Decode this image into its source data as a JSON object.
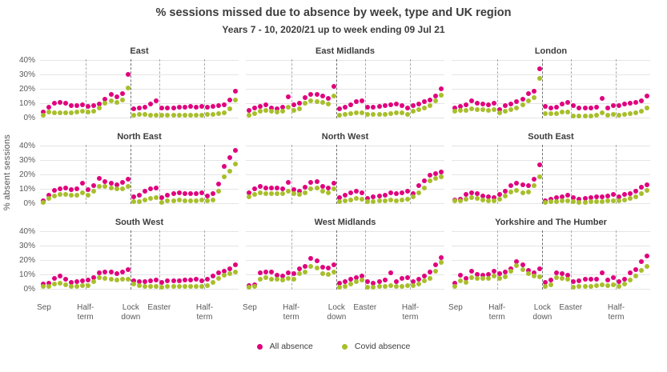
{
  "chart_data": {
    "type": "scatter",
    "title": "% sessions missed due to absence by week, type and UK region",
    "subtitle": "Years 7 - 10, 2020/21 up to week ending 09 Jul 21",
    "ylabel": "% absent sessions",
    "ylim": [
      0,
      40
    ],
    "y_ticks": [
      "0%",
      "10%",
      "20%",
      "30%",
      "40%"
    ],
    "grid": "horizontal-light-gray",
    "legend_position": "bottom-center",
    "series_names": [
      "All absence",
      "Covid absence"
    ],
    "colors": {
      "all_absence": "#e0007d",
      "covid_absence": "#a8be2b",
      "gridline": "#e4e4e4",
      "separator": "#ababab",
      "lockdown_separator": "#6f6f6f",
      "text": "#3d3d3d",
      "axis_text": "#5a5a5a"
    },
    "x_axis": {
      "period_labels": [
        "Sep",
        "Half-\nterm",
        "Lock\ndown",
        "Easter",
        "Half-\nterm"
      ],
      "weeks_per_segment": [
        8,
        8,
        5,
        8,
        6
      ],
      "total_weeks": 35,
      "separator_after_weeks": [
        8,
        16,
        21,
        29
      ],
      "lockdown_separator_week": 16
    },
    "panels": [
      {
        "region": "East",
        "all_absence": [
          4.5,
          8,
          10.5,
          11,
          10.5,
          9,
          9,
          9.5,
          8.5,
          9,
          10,
          13.5,
          16.5,
          15,
          17.5,
          30.5,
          6.5,
          7.5,
          8,
          10,
          12,
          7,
          7.5,
          7.5,
          8,
          8,
          8.5,
          8,
          8.5,
          8,
          8.5,
          9,
          9.5,
          13,
          19
        ],
        "covid_absence": [
          2.5,
          4.5,
          4,
          4,
          4,
          4,
          4.5,
          5,
          4.5,
          5,
          7.5,
          10.5,
          12.5,
          11,
          13,
          21,
          2.5,
          3,
          3,
          2.5,
          2,
          2,
          2,
          2,
          2,
          2,
          2,
          2,
          2,
          3,
          3,
          3.5,
          4,
          6.5,
          13
        ]
      },
      {
        "region": "East Midlands",
        "all_absence": [
          5.5,
          7,
          8.5,
          9.5,
          7.5,
          6.5,
          8,
          15,
          9.5,
          10.5,
          14.5,
          16.5,
          16.5,
          15.5,
          14,
          22,
          6.5,
          8,
          9.5,
          11.5,
          12.5,
          8,
          8,
          8.5,
          9,
          9.5,
          10,
          9,
          7,
          9,
          10,
          11.5,
          13,
          15.5,
          20.5
        ],
        "covid_absence": [
          2.5,
          3.5,
          5,
          5.5,
          5,
          4.5,
          5,
          8,
          5.5,
          6.5,
          10.5,
          12,
          11.5,
          11,
          10,
          15.5,
          2.5,
          3,
          3.5,
          4,
          4,
          3,
          3,
          3,
          3,
          3.5,
          4,
          4,
          3,
          5,
          6,
          7,
          9,
          12,
          16
        ]
      },
      {
        "region": "London",
        "all_absence": [
          7.5,
          8.5,
          9.5,
          12,
          10.5,
          10,
          9.5,
          10.5,
          6,
          9,
          10,
          11.5,
          13.5,
          17,
          19,
          34.5,
          8.5,
          7.5,
          8,
          10,
          11,
          9,
          7,
          7,
          7.5,
          8,
          14,
          7.5,
          9,
          9,
          10,
          10.5,
          11,
          12,
          15.5
        ],
        "covid_absence": [
          5,
          5.5,
          5.5,
          6.5,
          6,
          6,
          5.5,
          6,
          4,
          5,
          6,
          7.5,
          9.5,
          12,
          14.5,
          28,
          3.5,
          3.5,
          3.5,
          4.5,
          4.5,
          1.5,
          1.5,
          1.5,
          1.5,
          2,
          4,
          2,
          3,
          2.5,
          3,
          3.5,
          4,
          5,
          7
        ]
      },
      {
        "region": "North East",
        "all_absence": [
          2.5,
          6,
          9.5,
          10.5,
          11,
          10,
          10.5,
          14.5,
          10,
          13,
          18,
          15.5,
          14.5,
          13.5,
          15,
          17.5,
          5,
          6,
          9,
          10.5,
          11,
          4.5,
          6,
          7,
          8,
          7,
          7,
          7,
          8,
          5.5,
          7,
          14,
          26,
          32,
          37
        ],
        "covid_absence": [
          1,
          4,
          5.5,
          6.5,
          6.5,
          6,
          6,
          8,
          6,
          9,
          12.5,
          12,
          11,
          10.5,
          10.5,
          12,
          1.5,
          1.5,
          3,
          4,
          4.5,
          1,
          2,
          2.5,
          3,
          2.5,
          2.5,
          2.5,
          3,
          2,
          3,
          9,
          19,
          23,
          28
        ]
      },
      {
        "region": "North West",
        "all_absence": [
          8,
          10.5,
          12,
          11,
          11,
          11,
          10.5,
          15,
          10,
          9,
          11.5,
          15,
          15.5,
          12,
          11,
          14.5,
          4.5,
          6,
          8,
          9,
          8,
          4,
          5,
          5.5,
          6,
          8,
          7,
          8,
          9,
          7,
          13,
          16,
          20,
          21,
          22
        ],
        "covid_absence": [
          5,
          6.5,
          8,
          7.5,
          7.5,
          7.5,
          7,
          9,
          7,
          6.5,
          8,
          10.5,
          11,
          9,
          8,
          10.5,
          1.5,
          2,
          3,
          4,
          3.5,
          1.5,
          1.5,
          2,
          2,
          3,
          2.5,
          3,
          3.5,
          5,
          8,
          11,
          16,
          18,
          19
        ]
      },
      {
        "region": "South East",
        "all_absence": [
          3,
          3.5,
          6.5,
          8,
          7,
          5.5,
          5,
          4.5,
          6.5,
          9,
          13,
          14.5,
          13.5,
          13,
          17.5,
          27,
          2.5,
          3.5,
          4.5,
          5,
          6,
          4.5,
          3.5,
          4,
          4.5,
          5,
          5,
          5.5,
          6.5,
          5,
          6.5,
          7,
          9,
          11.5,
          13.5
        ],
        "covid_absence": [
          2,
          2,
          3.5,
          4.5,
          4,
          3,
          2.5,
          2.5,
          3.5,
          5.5,
          8.5,
          9.5,
          8,
          8.5,
          13,
          19,
          1,
          1.5,
          1.5,
          2,
          2.5,
          1.5,
          1,
          1,
          1.5,
          1.5,
          1.5,
          2,
          2,
          2,
          3,
          4,
          5,
          7,
          9.5
        ]
      },
      {
        "region": "South West",
        "all_absence": [
          4,
          4.5,
          8,
          9.5,
          7,
          5,
          5.5,
          6,
          6.5,
          8.5,
          11.5,
          12.5,
          12,
          11,
          12,
          14,
          6,
          5.5,
          5.5,
          6,
          6.5,
          5,
          6,
          6,
          6,
          6.5,
          6.5,
          7,
          6,
          7,
          9.5,
          11.5,
          13,
          14.5,
          17
        ],
        "covid_absence": [
          2,
          2.5,
          4,
          4.5,
          3.5,
          2.5,
          2.5,
          3,
          3,
          5.5,
          8.5,
          8,
          7.5,
          6.5,
          7,
          7.5,
          4,
          3,
          2.5,
          2,
          2,
          1.5,
          2,
          2,
          2,
          2,
          2,
          2.5,
          2,
          3,
          5,
          8,
          10,
          11,
          12
        ]
      },
      {
        "region": "West Midlands",
        "all_absence": [
          3,
          3.5,
          11.5,
          12.5,
          12.5,
          10,
          9.5,
          11.5,
          11,
          14.5,
          16,
          21.5,
          20,
          15.5,
          15,
          17.5,
          4.5,
          5.5,
          7,
          8.5,
          9.5,
          5.5,
          4.5,
          5.5,
          6.5,
          11.5,
          5.5,
          8,
          8.5,
          5.5,
          7,
          9.5,
          12,
          17,
          22
        ],
        "covid_absence": [
          1.5,
          2.5,
          7,
          8.5,
          7.5,
          7,
          6.5,
          8,
          7.5,
          11,
          12.5,
          16,
          15,
          11,
          10.5,
          12,
          1.5,
          2,
          4,
          5.5,
          6.5,
          1.5,
          1.5,
          2,
          2,
          3,
          2,
          2.5,
          3,
          3,
          4,
          6,
          8,
          13,
          19
        ]
      },
      {
        "region": "Yorkshire and The Humber",
        "all_absence": [
          4.5,
          10,
          8,
          13,
          10.5,
          10,
          10.5,
          13,
          11,
          12,
          14.5,
          19.5,
          17,
          13.5,
          11.5,
          14.5,
          5,
          6.5,
          11.5,
          11,
          10,
          5.5,
          6,
          7,
          7,
          7,
          11.5,
          6.5,
          8.5,
          5.5,
          7,
          11.5,
          14,
          19.5,
          23.5
        ],
        "covid_absence": [
          2.5,
          6,
          5,
          8.5,
          8,
          8,
          8,
          9.5,
          8,
          9,
          13,
          16.5,
          14,
          11,
          9.5,
          9,
          2.5,
          3.5,
          8.5,
          8,
          7,
          1.5,
          2,
          2.5,
          2.5,
          3,
          3.5,
          3,
          3.5,
          2,
          4,
          6.5,
          9.5,
          13.5,
          16
        ]
      }
    ]
  }
}
